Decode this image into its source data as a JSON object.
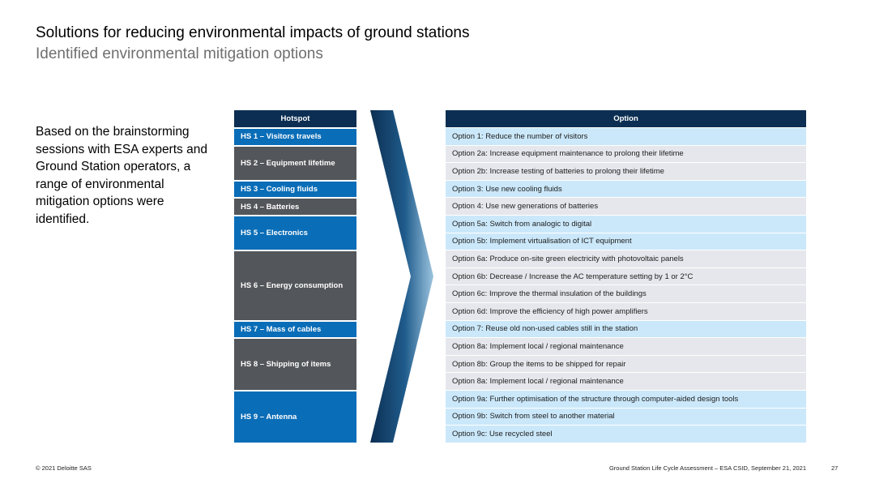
{
  "header": {
    "title": "Solutions for reducing environmental impacts of ground stations",
    "subtitle": "Identified environmental mitigation options"
  },
  "intro_text": "Based on the brainstorming sessions with ESA experts and Ground Station operators, a range of environmental mitigation options were identified.",
  "table": {
    "hotspot_header": "Hotspot",
    "option_header": "Option",
    "hotspots": [
      {
        "label": "HS 1 – Visitors travels",
        "color": "#0a6db7",
        "rows": 1
      },
      {
        "label": "HS 2 – Equipment lifetime",
        "color": "#53565a",
        "rows": 2
      },
      {
        "label": "HS 3 – Cooling fluids",
        "color": "#0a6db7",
        "rows": 1
      },
      {
        "label": "HS 4 – Batteries",
        "color": "#53565a",
        "rows": 1
      },
      {
        "label": "HS 5 – Electronics",
        "color": "#0a6db7",
        "rows": 2
      },
      {
        "label": "HS 6 – Energy consumption",
        "color": "#53565a",
        "rows": 4
      },
      {
        "label": "HS 7 – Mass of cables",
        "color": "#0a6db7",
        "rows": 1
      },
      {
        "label": "HS 8 – Shipping of items",
        "color": "#53565a",
        "rows": 3
      },
      {
        "label": "HS 9 – Antenna",
        "color": "#0a6db7",
        "rows": 3
      }
    ],
    "options": [
      {
        "label": "Option 1: Reduce the number of visitors",
        "shade": "light"
      },
      {
        "label": "Option 2a: Increase equipment maintenance to prolong their lifetime",
        "shade": "pale"
      },
      {
        "label": "Option 2b: Increase testing of batteries to prolong their lifetime",
        "shade": "pale"
      },
      {
        "label": "Option 3: Use new cooling fluids",
        "shade": "light"
      },
      {
        "label": "Option 4: Use new generations of batteries",
        "shade": "pale"
      },
      {
        "label": "Option 5a: Switch from analogic to digital",
        "shade": "light"
      },
      {
        "label": "Option 5b: Implement virtualisation of ICT equipment",
        "shade": "light"
      },
      {
        "label": "Option 6a: Produce on-site green electricity with photovoltaic panels",
        "shade": "pale"
      },
      {
        "label": "Option 6b: Decrease / Increase the AC temperature setting by 1 or 2°C",
        "shade": "pale"
      },
      {
        "label": "Option 6c: Improve the thermal insulation of the buildings",
        "shade": "pale"
      },
      {
        "label": "Option 6d: Improve the efficiency of high power amplifiers",
        "shade": "pale"
      },
      {
        "label": "Option 7: Reuse old non-used cables still in the station",
        "shade": "light"
      },
      {
        "label": "Option 8a: Implement local / regional maintenance",
        "shade": "pale"
      },
      {
        "label": "Option 8b: Group the items to be shipped for repair",
        "shade": "pale"
      },
      {
        "label": "Option 8a: Implement local / regional maintenance",
        "shade": "pale"
      },
      {
        "label": "Option 9a: Further optimisation of the structure through computer-aided design tools",
        "shade": "light"
      },
      {
        "label": "Option 9b: Switch from steel to another material",
        "shade": "light"
      },
      {
        "label": "Option 9c: Use recycled steel",
        "shade": "light"
      }
    ]
  },
  "footer": {
    "copyright": "© 2021 Deloitte SAS",
    "document": "Ground Station Life Cycle Assessment – ESA CSID, September 21, 2021",
    "page": "27"
  },
  "colors": {
    "header_navy": "#0c2e52",
    "hotspot_blue": "#0a6db7",
    "hotspot_grey": "#53565a",
    "option_light_blue": "#cbe8fa",
    "option_grey": "#e6e7ec"
  }
}
